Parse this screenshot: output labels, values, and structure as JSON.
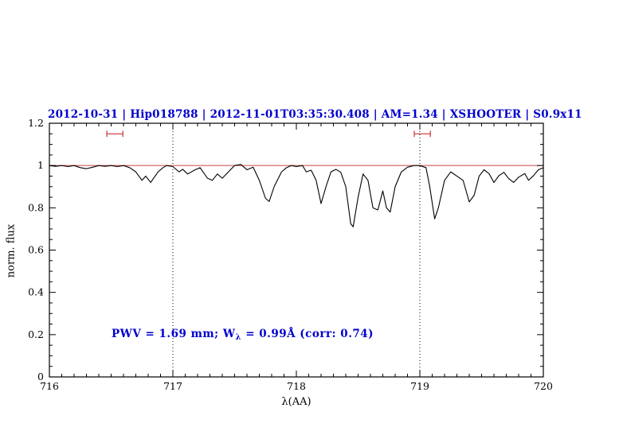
{
  "chart_data": {
    "type": "line",
    "title": "2012-10-31 | Hip018788 | 2012-11-01T03:35:30.408 | AM=1.34 | XSHOOTER | S0.9x11",
    "xlabel": "λ(AA)",
    "ylabel": "norm. flux",
    "xlim": [
      716,
      720
    ],
    "ylim": [
      0,
      1.2
    ],
    "x_ticks": [
      {
        "v": 716,
        "label": "716"
      },
      {
        "v": 717,
        "label": "717"
      },
      {
        "v": 718,
        "label": "718"
      },
      {
        "v": 719,
        "label": "719"
      },
      {
        "v": 720,
        "label": "720"
      }
    ],
    "y_ticks": [
      {
        "v": 0,
        "label": "0"
      },
      {
        "v": 0.2,
        "label": "0.2"
      },
      {
        "v": 0.4,
        "label": "0.4"
      },
      {
        "v": 0.6,
        "label": "0.6"
      },
      {
        "v": 0.8,
        "label": "0.8"
      },
      {
        "v": 1,
        "label": "1"
      },
      {
        "v": 1.2,
        "label": "1.2"
      }
    ],
    "x_minor_step": 0.1,
    "y_minor_step": 0.05,
    "grid": false,
    "legend": "none",
    "colors": {
      "title": "#0000cd",
      "annotation": "#0000cd",
      "spectrum": "#000000",
      "continuum": "#cc4444",
      "marker": "#cc3333",
      "vline": "#000000"
    },
    "continuum_line": {
      "y": 1.0
    },
    "vlines": [
      {
        "x": 717
      },
      {
        "x": 719
      }
    ],
    "markers": [
      {
        "x_center": 716.53,
        "half_width": 0.065,
        "y": 1.15
      },
      {
        "x_center": 719.02,
        "half_width": 0.065,
        "y": 1.15
      }
    ],
    "annotation": {
      "part1": "PWV = 1.69 mm; W",
      "sub": "λ",
      "part2": " = 0.99Å (corr: 0.74)"
    },
    "series": [
      {
        "name": "normalized spectrum",
        "color": "#000000",
        "points": [
          [
            716.0,
            1.0
          ],
          [
            716.05,
            0.996
          ],
          [
            716.1,
            1.0
          ],
          [
            716.15,
            0.995
          ],
          [
            716.2,
            1.0
          ],
          [
            716.25,
            0.99
          ],
          [
            716.3,
            0.985
          ],
          [
            716.35,
            0.992
          ],
          [
            716.4,
            1.0
          ],
          [
            716.45,
            0.996
          ],
          [
            716.5,
            1.0
          ],
          [
            716.55,
            0.995
          ],
          [
            716.6,
            1.0
          ],
          [
            716.65,
            0.99
          ],
          [
            716.7,
            0.97
          ],
          [
            716.75,
            0.93
          ],
          [
            716.78,
            0.95
          ],
          [
            716.82,
            0.92
          ],
          [
            716.88,
            0.97
          ],
          [
            716.92,
            0.99
          ],
          [
            716.95,
            1.0
          ],
          [
            717.0,
            0.995
          ],
          [
            717.05,
            0.97
          ],
          [
            717.08,
            0.982
          ],
          [
            717.12,
            0.96
          ],
          [
            717.18,
            0.98
          ],
          [
            717.22,
            0.99
          ],
          [
            717.28,
            0.94
          ],
          [
            717.32,
            0.93
          ],
          [
            717.36,
            0.96
          ],
          [
            717.4,
            0.94
          ],
          [
            717.45,
            0.97
          ],
          [
            717.5,
            1.0
          ],
          [
            717.55,
            1.005
          ],
          [
            717.6,
            0.98
          ],
          [
            717.65,
            0.992
          ],
          [
            717.7,
            0.93
          ],
          [
            717.75,
            0.845
          ],
          [
            717.78,
            0.83
          ],
          [
            717.82,
            0.9
          ],
          [
            717.88,
            0.97
          ],
          [
            717.92,
            0.99
          ],
          [
            717.96,
            1.0
          ],
          [
            718.0,
            0.995
          ],
          [
            718.05,
            1.0
          ],
          [
            718.08,
            0.97
          ],
          [
            718.12,
            0.978
          ],
          [
            718.16,
            0.93
          ],
          [
            718.2,
            0.82
          ],
          [
            718.24,
            0.9
          ],
          [
            718.28,
            0.97
          ],
          [
            718.32,
            0.982
          ],
          [
            718.36,
            0.968
          ],
          [
            718.4,
            0.9
          ],
          [
            718.44,
            0.725
          ],
          [
            718.46,
            0.71
          ],
          [
            718.5,
            0.85
          ],
          [
            718.54,
            0.96
          ],
          [
            718.58,
            0.93
          ],
          [
            718.62,
            0.8
          ],
          [
            718.66,
            0.79
          ],
          [
            718.7,
            0.88
          ],
          [
            718.73,
            0.8
          ],
          [
            718.76,
            0.78
          ],
          [
            718.8,
            0.9
          ],
          [
            718.85,
            0.97
          ],
          [
            718.9,
            0.992
          ],
          [
            718.95,
            1.0
          ],
          [
            719.0,
            1.0
          ],
          [
            719.05,
            0.99
          ],
          [
            719.08,
            0.9
          ],
          [
            719.12,
            0.748
          ],
          [
            719.15,
            0.8
          ],
          [
            719.2,
            0.93
          ],
          [
            719.25,
            0.97
          ],
          [
            719.3,
            0.95
          ],
          [
            719.35,
            0.93
          ],
          [
            719.4,
            0.828
          ],
          [
            719.44,
            0.86
          ],
          [
            719.48,
            0.95
          ],
          [
            719.52,
            0.98
          ],
          [
            719.56,
            0.962
          ],
          [
            719.6,
            0.92
          ],
          [
            719.64,
            0.952
          ],
          [
            719.68,
            0.968
          ],
          [
            719.72,
            0.938
          ],
          [
            719.76,
            0.92
          ],
          [
            719.8,
            0.945
          ],
          [
            719.85,
            0.962
          ],
          [
            719.88,
            0.93
          ],
          [
            719.92,
            0.952
          ],
          [
            719.96,
            0.98
          ],
          [
            720.0,
            0.99
          ]
        ]
      }
    ]
  }
}
